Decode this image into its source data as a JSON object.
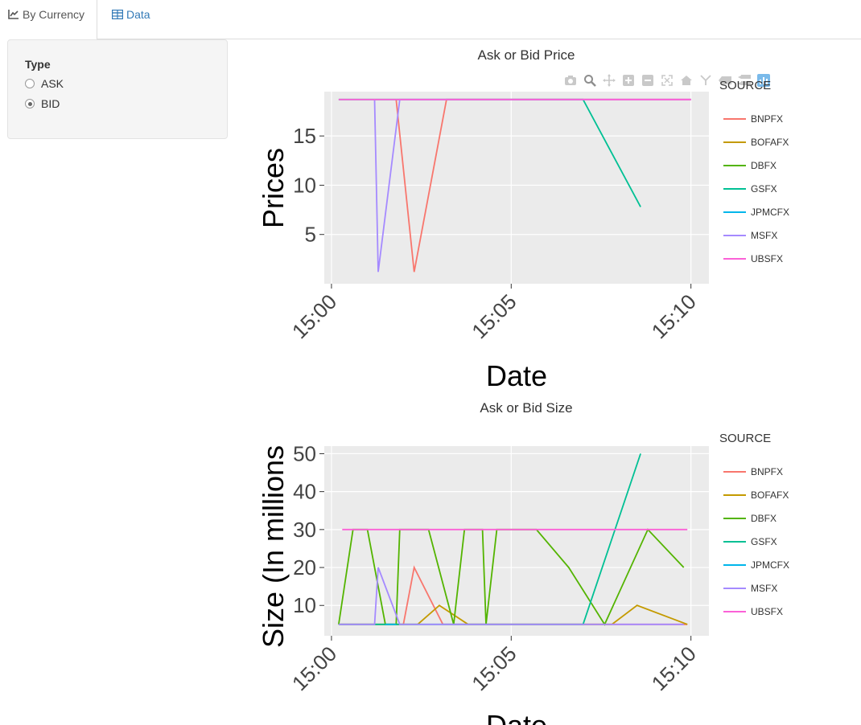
{
  "tabs": [
    {
      "label": "By Currency",
      "icon": "line-chart-icon",
      "active": true
    },
    {
      "label": "Data",
      "icon": "table-icon",
      "active": false
    }
  ],
  "sidebar": {
    "type_label": "Type",
    "options": [
      {
        "label": "ASK",
        "selected": false
      },
      {
        "label": "BID",
        "selected": true
      }
    ]
  },
  "modebar": {
    "icons": [
      "camera-icon",
      "zoom-icon",
      "pan-icon",
      "zoom-in-icon",
      "zoom-out-icon",
      "autoscale-icon",
      "reset-axes-icon",
      "spike-lines-icon",
      "hover-closest-icon",
      "hover-compare-icon",
      "plotly-logo-icon"
    ]
  },
  "colors": {
    "BNPFX": "#F8766D",
    "BOFAFX": "#C49A00",
    "DBFX": "#53B400",
    "GSFX": "#00C094",
    "JPMCFX": "#00B6EB",
    "MSFX": "#A58AFF",
    "UBSFX": "#FB61D7"
  },
  "chart_data": [
    {
      "type": "line",
      "title": "Ask or Bid Price",
      "xlabel": "Date",
      "ylabel": "Prices",
      "x_ticks": [
        "15:00",
        "15:05",
        "15:10"
      ],
      "y_ticks": [
        5,
        10,
        15
      ],
      "xlim": [
        "14:59.8",
        "15:10.5"
      ],
      "ylim": [
        0,
        19.5
      ],
      "legend_title": "SOURCE",
      "series": [
        {
          "name": "BNPFX",
          "points": [
            [
              "15:01.8",
              18.7
            ],
            [
              "15:02.3",
              1.2
            ],
            [
              "15:03.2",
              18.7
            ],
            [
              "15:10.0",
              18.7
            ]
          ]
        },
        {
          "name": "BOFAFX",
          "points": []
        },
        {
          "name": "DBFX",
          "points": []
        },
        {
          "name": "GSFX",
          "points": [
            [
              "15:00.2",
              18.7
            ],
            [
              "15:07.0",
              18.7
            ],
            [
              "15:08.6",
              7.8
            ]
          ]
        },
        {
          "name": "JPMCFX",
          "points": []
        },
        {
          "name": "MSFX",
          "points": [
            [
              "15:01.2",
              18.7
            ],
            [
              "15:01.3",
              1.2
            ],
            [
              "15:01.9",
              18.7
            ],
            [
              "15:10.0",
              18.7
            ]
          ]
        },
        {
          "name": "UBSFX",
          "points": [
            [
              "15:00.2",
              18.7
            ],
            [
              "15:10.0",
              18.7
            ]
          ]
        }
      ]
    },
    {
      "type": "line",
      "title": "Ask or Bid Size",
      "xlabel": "Date",
      "ylabel": "Size (In millions",
      "x_ticks": [
        "15:00",
        "15:05",
        "15:10"
      ],
      "y_ticks": [
        10,
        20,
        30,
        40,
        50
      ],
      "xlim": [
        "14:59.8",
        "15:10.5"
      ],
      "ylim": [
        2,
        52
      ],
      "legend_title": "SOURCE",
      "series": [
        {
          "name": "BNPFX",
          "points": [
            [
              "15:00.2",
              5
            ],
            [
              "15:02.0",
              5
            ],
            [
              "15:02.3",
              20
            ],
            [
              "15:03.1",
              5
            ],
            [
              "15:09.9",
              5
            ]
          ]
        },
        {
          "name": "BOFAFX",
          "points": [
            [
              "15:00.2",
              5
            ],
            [
              "15:02.4",
              5
            ],
            [
              "15:03.0",
              10
            ],
            [
              "15:03.8",
              5
            ],
            [
              "15:07.8",
              5
            ],
            [
              "15:08.5",
              10
            ],
            [
              "15:09.9",
              5
            ]
          ]
        },
        {
          "name": "DBFX",
          "points": [
            [
              "15:00.2",
              5
            ],
            [
              "15:00.6",
              30
            ],
            [
              "15:01.0",
              30
            ],
            [
              "15:01.5",
              5
            ],
            [
              "15:01.8",
              5
            ],
            [
              "15:01.9",
              30
            ],
            [
              "15:02.7",
              30
            ],
            [
              "15:03.4",
              5
            ],
            [
              "15:03.7",
              30
            ],
            [
              "15:04.2",
              30
            ],
            [
              "15:04.3",
              5
            ],
            [
              "15:04.6",
              30
            ],
            [
              "15:05.7",
              30
            ],
            [
              "15:06.6",
              20
            ],
            [
              "15:07.6",
              5
            ],
            [
              "15:08.8",
              30
            ],
            [
              "15:09.8",
              20
            ]
          ]
        },
        {
          "name": "GSFX",
          "points": [
            [
              "15:00.2",
              5
            ],
            [
              "15:07.0",
              5
            ],
            [
              "15:08.6",
              50
            ]
          ]
        },
        {
          "name": "JPMCFX",
          "points": [
            [
              "15:01.5",
              5
            ],
            [
              "15:01.8",
              5
            ]
          ]
        },
        {
          "name": "MSFX",
          "points": [
            [
              "15:00.2",
              5
            ],
            [
              "15:01.2",
              5
            ],
            [
              "15:01.3",
              20
            ],
            [
              "15:01.9",
              5
            ],
            [
              "15:09.8",
              5
            ]
          ]
        },
        {
          "name": "UBSFX",
          "points": [
            [
              "15:00.3",
              30
            ],
            [
              "15:09.9",
              30
            ]
          ]
        }
      ]
    }
  ]
}
